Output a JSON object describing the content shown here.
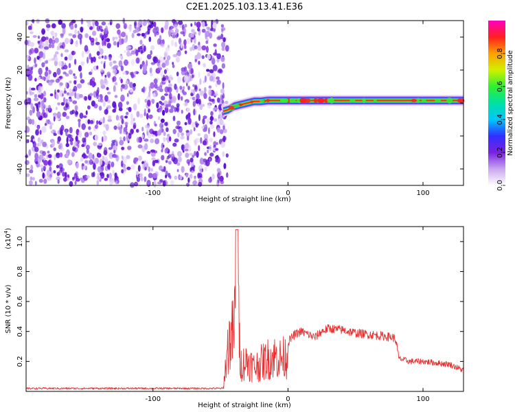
{
  "title": "C2E1.2025.103.13.41.E36",
  "chart_data": [
    {
      "type": "heatmap",
      "xlabel": "Height of straight line (km)",
      "ylabel": "Frequency (Hz)",
      "xlim": [
        -194,
        130
      ],
      "ylim": [
        -50,
        50
      ],
      "xticks": [
        -100,
        0,
        100
      ],
      "xtick_labels": [
        "-100",
        "0",
        "100"
      ],
      "yticks": [
        -40,
        -20,
        0,
        20,
        40
      ],
      "ytick_labels": [
        "-40",
        "-20",
        "0",
        "20",
        "40"
      ],
      "noise_region_x": [
        -194,
        -48
      ],
      "signal_band": {
        "x": [
          -48,
          -44,
          -40,
          -35,
          -30,
          -25,
          -20,
          -15,
          -10,
          -5,
          0,
          10,
          20,
          40,
          60,
          80,
          90,
          100,
          110,
          120,
          130
        ],
        "center_hz": [
          -5,
          -4,
          -2,
          -1,
          0,
          1,
          1,
          1.5,
          1.5,
          1.5,
          1.5,
          1.5,
          1.5,
          1.5,
          1.5,
          1.5,
          1.5,
          1.5,
          1.5,
          1.5,
          1.5
        ]
      },
      "colorbar": {
        "label": "Normalized spectral amplitude",
        "range": [
          0,
          1
        ],
        "ticks": [
          "0.0",
          "0.2",
          "0.4",
          "0.6",
          "0.8"
        ],
        "colors": [
          "#ffffff",
          "#c9a6f0",
          "#7a20e0",
          "#3030ff",
          "#00c8ff",
          "#00e0a0",
          "#30f030",
          "#d0f000",
          "#ffa000",
          "#ff2020",
          "#ff00c0"
        ]
      }
    },
    {
      "type": "line",
      "xlabel": "Height of straight line (km)",
      "ylabel": "SNR (10 * v/v)",
      "y_multiplier_label": "(x10",
      "y_multiplier_exp": "4",
      "xlim": [
        -194,
        130
      ],
      "ylim": [
        0.0,
        1.1
      ],
      "xticks": [
        -100,
        0,
        100
      ],
      "xtick_labels": [
        "-100",
        "0",
        "100"
      ],
      "yticks": [
        0.2,
        0.4,
        0.6,
        0.8,
        1.0
      ],
      "ytick_labels": [
        "0.2",
        "0.4",
        "0.6",
        "0.8",
        "1.0"
      ],
      "color": "#e83030",
      "series_envelope": {
        "x": [
          -194,
          -140,
          -90,
          -48,
          -47,
          -44,
          -40,
          -38,
          -35,
          -30,
          -25,
          -20,
          -15,
          -10,
          -5,
          0,
          5,
          10,
          15,
          20,
          25,
          30,
          40,
          50,
          60,
          70,
          78,
          80,
          82,
          90,
          100,
          110,
          120,
          130
        ],
        "y": [
          0.02,
          0.02,
          0.02,
          0.02,
          0.15,
          0.45,
          0.55,
          1.0,
          0.25,
          0.28,
          0.22,
          0.26,
          0.3,
          0.32,
          0.3,
          0.33,
          0.38,
          0.4,
          0.38,
          0.36,
          0.4,
          0.42,
          0.41,
          0.39,
          0.38,
          0.37,
          0.36,
          0.34,
          0.22,
          0.2,
          0.2,
          0.19,
          0.18,
          0.14
        ]
      }
    }
  ]
}
